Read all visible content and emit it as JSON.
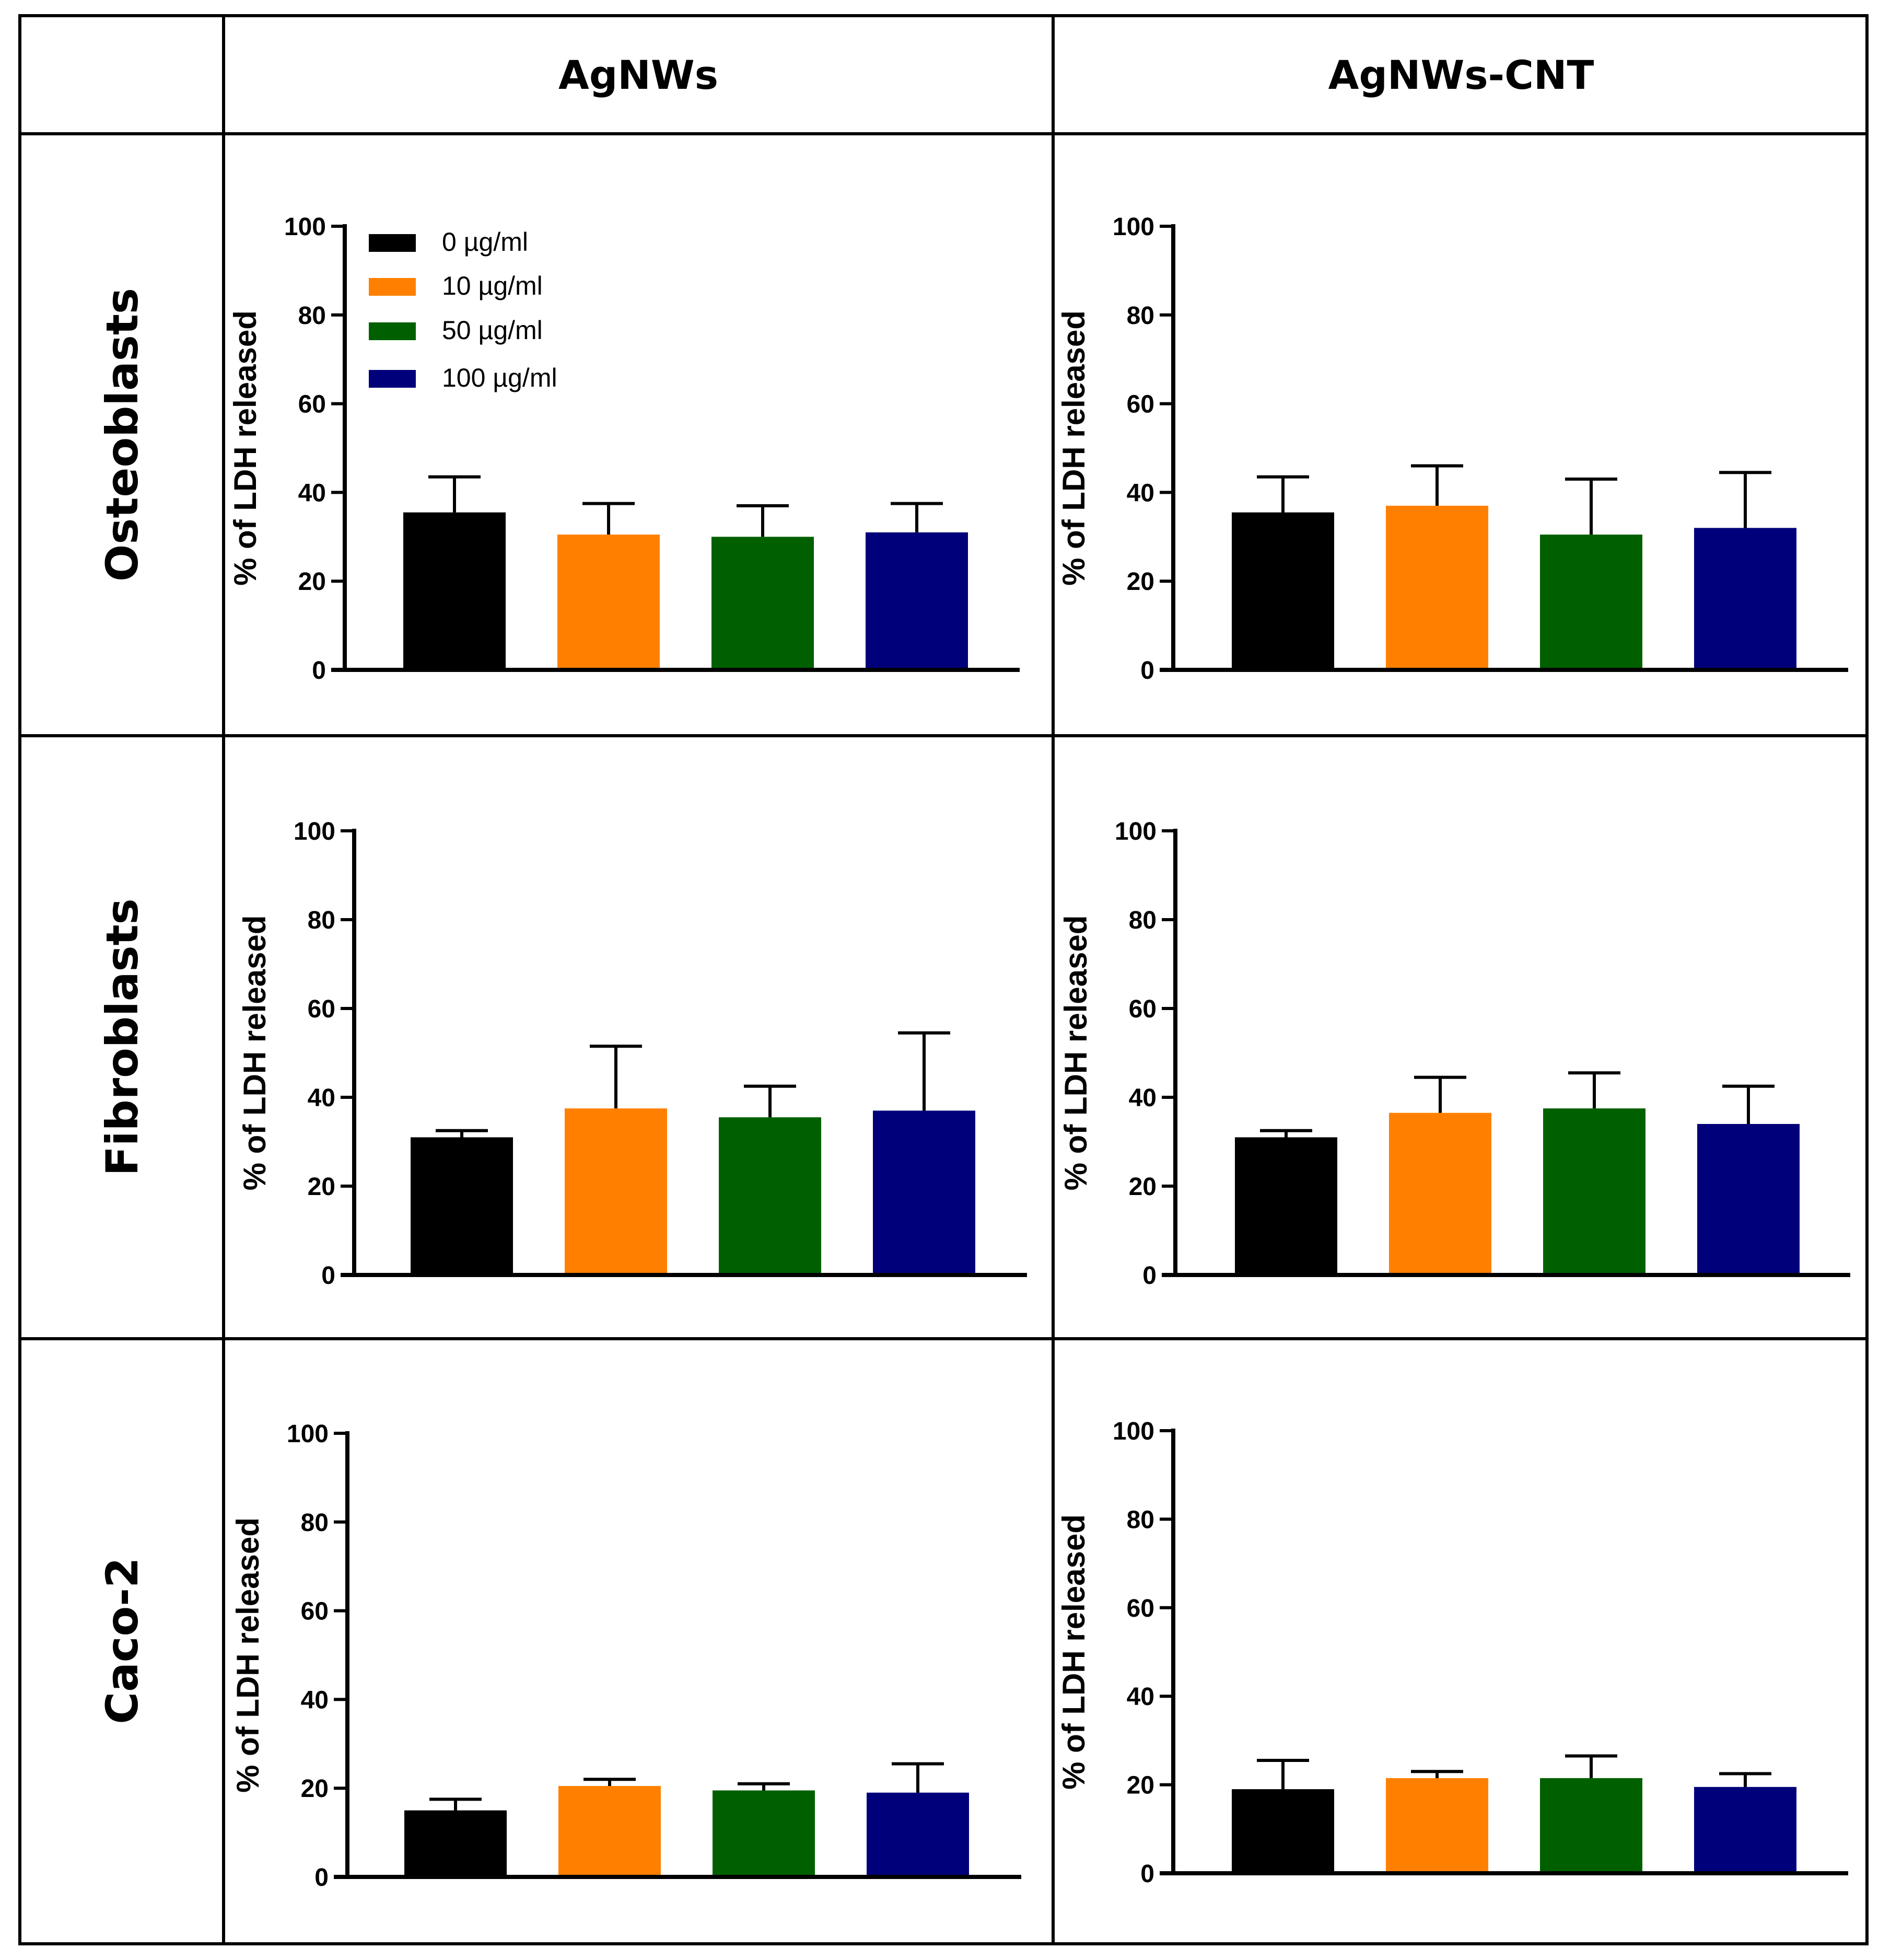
{
  "columns": [
    "AgNWs",
    "AgNWs-CNT"
  ],
  "rows": [
    "Osteoblasts",
    "Fibroblasts",
    "Caco-2"
  ],
  "legend": [
    {
      "label": "0 µg/ml",
      "color": "#000000"
    },
    {
      "label": "10 µg/ml",
      "color": "#ff8000"
    },
    {
      "label": "50 µg/ml",
      "color": "#006000"
    },
    {
      "label": "100 µg/ml",
      "color": "#00007a"
    }
  ],
  "chart_data": [
    {
      "type": "bar",
      "cell": "Osteoblasts / AgNWs",
      "ylabel": "%  of LDH released",
      "ylim": [
        0,
        100
      ],
      "yticks": [
        "0",
        "20",
        "40",
        "60",
        "80",
        "100"
      ],
      "categories": [
        "0 µg/ml",
        "10 µg/ml",
        "50 µg/ml",
        "100 µg/ml"
      ],
      "values": [
        35.5,
        30.5,
        30,
        31
      ],
      "errors": [
        8,
        7,
        7,
        6.5
      ]
    },
    {
      "type": "bar",
      "cell": "Osteoblasts / AgNWs-CNT",
      "ylabel": "%  of LDH released",
      "ylim": [
        0,
        100
      ],
      "yticks": [
        "0",
        "20",
        "40",
        "60",
        "80",
        "100"
      ],
      "categories": [
        "0 µg/ml",
        "10 µg/ml",
        "50 µg/ml",
        "100 µg/ml"
      ],
      "values": [
        35.5,
        37,
        30.5,
        32
      ],
      "errors": [
        8,
        9,
        12.5,
        12.5
      ]
    },
    {
      "type": "bar",
      "cell": "Fibroblasts / AgNWs",
      "ylabel": "%  of LDH released",
      "ylim": [
        0,
        100
      ],
      "yticks": [
        "0",
        "20",
        "40",
        "60",
        "80",
        "100"
      ],
      "categories": [
        "0 µg/ml",
        "10 µg/ml",
        "50 µg/ml",
        "100 µg/ml"
      ],
      "values": [
        31,
        37.5,
        35.5,
        37
      ],
      "errors": [
        1.5,
        14,
        7,
        17.5
      ]
    },
    {
      "type": "bar",
      "cell": "Fibroblasts / AgNWs-CNT",
      "ylabel": "%  of LDH released",
      "ylim": [
        0,
        100
      ],
      "yticks": [
        "0",
        "20",
        "40",
        "60",
        "80",
        "100"
      ],
      "categories": [
        "0 µg/ml",
        "10 µg/ml",
        "50 µg/ml",
        "100 µg/ml"
      ],
      "values": [
        31,
        36.5,
        37.5,
        34
      ],
      "errors": [
        1.5,
        8,
        8,
        8.5
      ]
    },
    {
      "type": "bar",
      "cell": "Caco-2 / AgNWs",
      "ylabel": "%  of LDH released",
      "ylim": [
        0,
        100
      ],
      "yticks": [
        "0",
        "20",
        "40",
        "60",
        "80",
        "100"
      ],
      "categories": [
        "0 µg/ml",
        "10 µg/ml",
        "50 µg/ml",
        "100 µg/ml"
      ],
      "values": [
        15,
        20.5,
        19.5,
        19
      ],
      "errors": [
        2.5,
        1.5,
        1.5,
        6.5
      ]
    },
    {
      "type": "bar",
      "cell": "Caco-2 / AgNWs-CNT",
      "ylabel": "%  of LDH released",
      "ylim": [
        0,
        100
      ],
      "yticks": [
        "0",
        "20",
        "40",
        "60",
        "80",
        "100"
      ],
      "categories": [
        "0 µg/ml",
        "10 µg/ml",
        "50 µg/ml",
        "100 µg/ml"
      ],
      "values": [
        19,
        21.5,
        21.5,
        19.5
      ],
      "errors": [
        6.5,
        1.5,
        5,
        3
      ]
    }
  ]
}
